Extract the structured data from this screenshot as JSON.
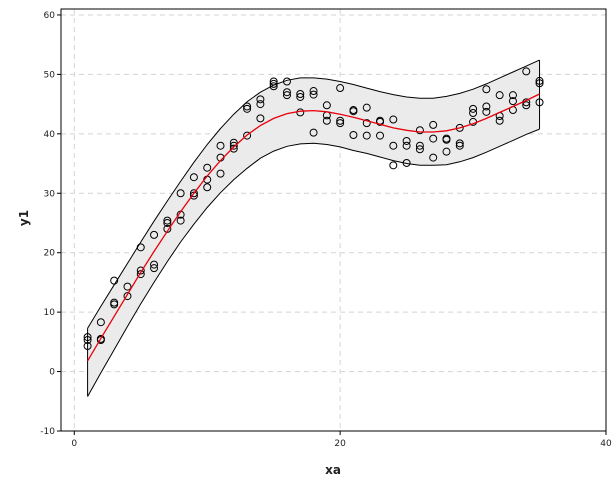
{
  "chart_data": {
    "type": "scatter",
    "xlabel": "xa",
    "ylabel": "y1",
    "xlim": [
      -1,
      40
    ],
    "ylim": [
      -10,
      61
    ],
    "x_ticks": [
      0,
      20,
      40
    ],
    "y_ticks": [
      -10,
      0,
      10,
      20,
      30,
      40,
      50,
      60
    ],
    "x_tick_labels": [
      "0",
      "20",
      "40"
    ],
    "y_tick_labels": [
      "-10",
      "0",
      "10",
      "20",
      "30",
      "40",
      "50",
      "60"
    ],
    "grid": true,
    "legend": "none",
    "colors": {
      "fit": "#e8000b",
      "band_fill": "#ebebeb",
      "band_edge": "#000000",
      "points": "#000000",
      "grid": "#d4d4d4"
    },
    "points": [
      {
        "x": 1,
        "y": 5.8
      },
      {
        "x": 1,
        "y": 5.3
      },
      {
        "x": 1,
        "y": 4.3
      },
      {
        "x": 2,
        "y": 8.3
      },
      {
        "x": 2,
        "y": 5.5
      },
      {
        "x": 2,
        "y": 5.3
      },
      {
        "x": 3,
        "y": 15.3
      },
      {
        "x": 3,
        "y": 11.6
      },
      {
        "x": 3,
        "y": 11.3
      },
      {
        "x": 4,
        "y": 14.3
      },
      {
        "x": 4,
        "y": 12.7
      },
      {
        "x": 5,
        "y": 20.9
      },
      {
        "x": 5,
        "y": 17.0
      },
      {
        "x": 5,
        "y": 16.4
      },
      {
        "x": 6,
        "y": 23.0
      },
      {
        "x": 6,
        "y": 18.0
      },
      {
        "x": 6,
        "y": 17.4
      },
      {
        "x": 7,
        "y": 25.4
      },
      {
        "x": 7,
        "y": 25.0
      },
      {
        "x": 7,
        "y": 24.0
      },
      {
        "x": 8,
        "y": 30.0
      },
      {
        "x": 8,
        "y": 26.4
      },
      {
        "x": 8,
        "y": 25.4
      },
      {
        "x": 9,
        "y": 32.7
      },
      {
        "x": 9,
        "y": 30.0
      },
      {
        "x": 9,
        "y": 29.6
      },
      {
        "x": 10,
        "y": 34.3
      },
      {
        "x": 10,
        "y": 32.3
      },
      {
        "x": 10,
        "y": 31.0
      },
      {
        "x": 11,
        "y": 38.0
      },
      {
        "x": 11,
        "y": 36.0
      },
      {
        "x": 11,
        "y": 33.3
      },
      {
        "x": 12,
        "y": 38.5
      },
      {
        "x": 12,
        "y": 38.0
      },
      {
        "x": 12,
        "y": 37.5
      },
      {
        "x": 13,
        "y": 44.6
      },
      {
        "x": 13,
        "y": 44.2
      },
      {
        "x": 13,
        "y": 39.7
      },
      {
        "x": 14,
        "y": 45.8
      },
      {
        "x": 14,
        "y": 45.0
      },
      {
        "x": 14,
        "y": 42.6
      },
      {
        "x": 15,
        "y": 48.8
      },
      {
        "x": 15,
        "y": 48.4
      },
      {
        "x": 15,
        "y": 48.0
      },
      {
        "x": 16,
        "y": 48.8
      },
      {
        "x": 16,
        "y": 47.0
      },
      {
        "x": 16,
        "y": 46.5
      },
      {
        "x": 17,
        "y": 46.7
      },
      {
        "x": 17,
        "y": 46.2
      },
      {
        "x": 17,
        "y": 43.6
      },
      {
        "x": 18,
        "y": 47.2
      },
      {
        "x": 18,
        "y": 46.6
      },
      {
        "x": 18,
        "y": 40.2
      },
      {
        "x": 19,
        "y": 44.8
      },
      {
        "x": 19,
        "y": 43.1
      },
      {
        "x": 19,
        "y": 42.2
      },
      {
        "x": 20,
        "y": 47.7
      },
      {
        "x": 20,
        "y": 42.2
      },
      {
        "x": 20,
        "y": 41.8
      },
      {
        "x": 21,
        "y": 44.0
      },
      {
        "x": 21,
        "y": 43.8
      },
      {
        "x": 21,
        "y": 39.8
      },
      {
        "x": 22,
        "y": 44.4
      },
      {
        "x": 22,
        "y": 41.8
      },
      {
        "x": 22,
        "y": 39.7
      },
      {
        "x": 23,
        "y": 42.2
      },
      {
        "x": 23,
        "y": 42.0
      },
      {
        "x": 23,
        "y": 39.7
      },
      {
        "x": 24,
        "y": 42.4
      },
      {
        "x": 24,
        "y": 38.0
      },
      {
        "x": 24,
        "y": 34.7
      },
      {
        "x": 25,
        "y": 38.8
      },
      {
        "x": 25,
        "y": 38.0
      },
      {
        "x": 25,
        "y": 35.1
      },
      {
        "x": 26,
        "y": 40.6
      },
      {
        "x": 26,
        "y": 38.0
      },
      {
        "x": 26,
        "y": 37.4
      },
      {
        "x": 27,
        "y": 41.5
      },
      {
        "x": 27,
        "y": 39.2
      },
      {
        "x": 27,
        "y": 36.0
      },
      {
        "x": 28,
        "y": 39.2
      },
      {
        "x": 28,
        "y": 39.0
      },
      {
        "x": 28,
        "y": 37.0
      },
      {
        "x": 29,
        "y": 41.0
      },
      {
        "x": 29,
        "y": 38.4
      },
      {
        "x": 29,
        "y": 38.0
      },
      {
        "x": 30,
        "y": 44.2
      },
      {
        "x": 30,
        "y": 43.5
      },
      {
        "x": 30,
        "y": 42.0
      },
      {
        "x": 31,
        "y": 47.5
      },
      {
        "x": 31,
        "y": 44.6
      },
      {
        "x": 31,
        "y": 43.7
      },
      {
        "x": 32,
        "y": 46.5
      },
      {
        "x": 32,
        "y": 43.0
      },
      {
        "x": 32,
        "y": 42.2
      },
      {
        "x": 33,
        "y": 46.5
      },
      {
        "x": 33,
        "y": 45.5
      },
      {
        "x": 33,
        "y": 44.0
      },
      {
        "x": 34,
        "y": 50.5
      },
      {
        "x": 34,
        "y": 45.3
      },
      {
        "x": 34,
        "y": 44.8
      },
      {
        "x": 35,
        "y": 48.9
      },
      {
        "x": 35,
        "y": 48.5
      },
      {
        "x": 35,
        "y": 45.3
      }
    ],
    "fit_line": {
      "x": [
        1,
        2,
        3,
        4,
        5,
        6,
        7,
        8,
        9,
        10,
        11,
        12,
        13,
        14,
        15,
        16,
        17,
        18,
        19,
        20,
        21,
        22,
        23,
        24,
        25,
        26,
        27,
        28,
        29,
        30,
        31,
        32,
        33,
        34,
        35
      ],
      "y": [
        1.8,
        5.6,
        9.3,
        13.0,
        16.7,
        20.2,
        23.6,
        26.9,
        30.0,
        32.9,
        35.5,
        37.8,
        39.8,
        41.4,
        42.6,
        43.4,
        43.8,
        43.9,
        43.7,
        43.3,
        42.8,
        42.2,
        41.6,
        41.0,
        40.6,
        40.3,
        40.3,
        40.5,
        41.0,
        41.7,
        42.6,
        43.6,
        44.6,
        45.6,
        46.7
      ]
    },
    "band_upper": {
      "x": [
        1,
        2,
        3,
        4,
        5,
        6,
        7,
        8,
        9,
        10,
        11,
        12,
        13,
        14,
        15,
        16,
        17,
        18,
        19,
        20,
        21,
        22,
        23,
        24,
        25,
        26,
        27,
        28,
        29,
        30,
        31,
        32,
        33,
        34,
        35
      ],
      "y": [
        7.3,
        11.0,
        14.6,
        18.2,
        21.8,
        25.3,
        28.7,
        32.0,
        35.2,
        38.2,
        40.9,
        43.3,
        45.4,
        47.0,
        48.2,
        49.0,
        49.4,
        49.4,
        49.2,
        48.8,
        48.3,
        47.7,
        47.1,
        46.6,
        46.2,
        46.0,
        46.0,
        46.3,
        46.8,
        47.5,
        48.4,
        49.4,
        50.4,
        51.4,
        52.4
      ]
    },
    "band_lower": {
      "x": [
        1,
        2,
        3,
        4,
        5,
        6,
        7,
        8,
        9,
        10,
        11,
        12,
        13,
        14,
        15,
        16,
        17,
        18,
        19,
        20,
        21,
        22,
        23,
        24,
        25,
        26,
        27,
        28,
        29,
        30,
        31,
        32,
        33,
        34,
        35
      ],
      "y": [
        -4.2,
        -0.2,
        3.7,
        7.6,
        11.4,
        15.0,
        18.5,
        21.8,
        24.8,
        27.6,
        30.1,
        32.3,
        34.2,
        35.9,
        37.1,
        37.9,
        38.3,
        38.4,
        38.2,
        37.8,
        37.2,
        36.7,
        36.1,
        35.5,
        35.0,
        34.7,
        34.7,
        34.8,
        35.3,
        36.0,
        36.9,
        37.9,
        38.9,
        39.9,
        40.8
      ]
    }
  }
}
